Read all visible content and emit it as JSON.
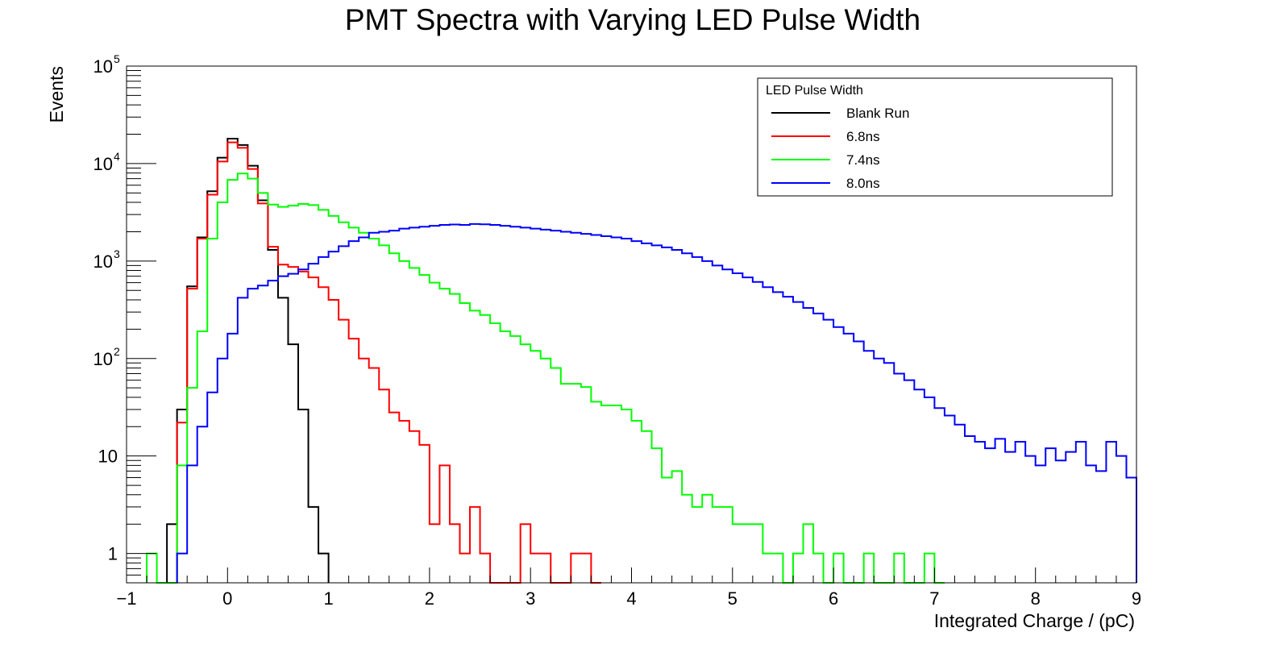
{
  "chart_data": {
    "type": "line",
    "title": "PMT Spectra with Varying LED Pulse Width",
    "xlabel": "Integrated Charge / (pC)",
    "ylabel": "Events",
    "xlim": [
      -1,
      9
    ],
    "ylim": [
      0.5,
      100000
    ],
    "y_scale": "log",
    "bin_width": 0.1,
    "grid": false,
    "x_ticks": [
      "−1",
      "0",
      "1",
      "2",
      "3",
      "4",
      "5",
      "6",
      "7",
      "8",
      "9"
    ],
    "y_ticks": [
      {
        "base": "10",
        "exp": "5"
      },
      {
        "base": "10",
        "exp": "4"
      },
      {
        "base": "10",
        "exp": "3"
      },
      {
        "base": "10",
        "exp": "2"
      },
      {
        "base": "10",
        "exp": ""
      },
      {
        "base": "1",
        "exp": ""
      }
    ],
    "legend": {
      "title": "LED Pulse Width",
      "position": "top-right",
      "entries": [
        "Blank Run",
        "6.8ns",
        "7.4ns",
        "8.0ns"
      ]
    },
    "series": [
      {
        "name": "Blank Run",
        "color": "#000000",
        "bins": [
          [
            -0.6,
            2
          ],
          [
            -0.5,
            30
          ],
          [
            -0.4,
            550
          ],
          [
            -0.3,
            1750
          ],
          [
            -0.2,
            5200
          ],
          [
            -0.1,
            11500
          ],
          [
            0.0,
            18000
          ],
          [
            0.1,
            15500
          ],
          [
            0.2,
            9500
          ],
          [
            0.3,
            4200
          ],
          [
            0.4,
            1300
          ],
          [
            0.5,
            420
          ],
          [
            0.6,
            140
          ],
          [
            0.7,
            30
          ],
          [
            0.8,
            3
          ],
          [
            0.9,
            1
          ]
        ]
      },
      {
        "name": "6.8ns",
        "color": "#ff0000",
        "bins": [
          [
            -0.5,
            22
          ],
          [
            -0.4,
            520
          ],
          [
            -0.3,
            1700
          ],
          [
            -0.2,
            4800
          ],
          [
            -0.1,
            10500
          ],
          [
            0.0,
            16500
          ],
          [
            0.1,
            14500
          ],
          [
            0.2,
            8800
          ],
          [
            0.3,
            3900
          ],
          [
            0.4,
            1400
          ],
          [
            0.5,
            920
          ],
          [
            0.6,
            870
          ],
          [
            0.7,
            780
          ],
          [
            0.8,
            680
          ],
          [
            0.9,
            540
          ],
          [
            1.0,
            400
          ],
          [
            1.1,
            250
          ],
          [
            1.2,
            160
          ],
          [
            1.3,
            100
          ],
          [
            1.4,
            80
          ],
          [
            1.5,
            48
          ],
          [
            1.6,
            28
          ],
          [
            1.7,
            23
          ],
          [
            1.8,
            18
          ],
          [
            1.9,
            13
          ],
          [
            2.0,
            2
          ],
          [
            2.1,
            8
          ],
          [
            2.2,
            2
          ],
          [
            2.3,
            1
          ],
          [
            2.4,
            3
          ],
          [
            2.5,
            1
          ],
          [
            2.6,
            0
          ],
          [
            2.7,
            0
          ],
          [
            2.8,
            0
          ],
          [
            2.9,
            2
          ],
          [
            3.0,
            1
          ],
          [
            3.1,
            1
          ],
          [
            3.2,
            0
          ],
          [
            3.3,
            0
          ],
          [
            3.4,
            1
          ],
          [
            3.5,
            1
          ],
          [
            3.6,
            0
          ]
        ]
      },
      {
        "name": "7.4ns",
        "color": "#00ff00",
        "bins": [
          [
            -0.8,
            1
          ],
          [
            -0.7,
            0
          ],
          [
            -0.6,
            0
          ],
          [
            -0.5,
            8
          ],
          [
            -0.4,
            50
          ],
          [
            -0.3,
            190
          ],
          [
            -0.2,
            1700
          ],
          [
            -0.1,
            4000
          ],
          [
            0.0,
            6800
          ],
          [
            0.1,
            7900
          ],
          [
            0.2,
            7000
          ],
          [
            0.3,
            5000
          ],
          [
            0.4,
            3800
          ],
          [
            0.5,
            3600
          ],
          [
            0.6,
            3700
          ],
          [
            0.7,
            3850
          ],
          [
            0.8,
            3750
          ],
          [
            0.9,
            3350
          ],
          [
            1.0,
            2900
          ],
          [
            1.1,
            2500
          ],
          [
            1.2,
            2200
          ],
          [
            1.3,
            1950
          ],
          [
            1.4,
            1700
          ],
          [
            1.5,
            1450
          ],
          [
            1.6,
            1200
          ],
          [
            1.7,
            1000
          ],
          [
            1.8,
            850
          ],
          [
            1.9,
            720
          ],
          [
            2.0,
            600
          ],
          [
            2.1,
            520
          ],
          [
            2.2,
            460
          ],
          [
            2.3,
            370
          ],
          [
            2.4,
            310
          ],
          [
            2.5,
            280
          ],
          [
            2.6,
            230
          ],
          [
            2.7,
            190
          ],
          [
            2.8,
            170
          ],
          [
            2.9,
            140
          ],
          [
            3.0,
            120
          ],
          [
            3.1,
            100
          ],
          [
            3.2,
            80
          ],
          [
            3.3,
            55
          ],
          [
            3.4,
            55
          ],
          [
            3.5,
            51
          ],
          [
            3.6,
            36
          ],
          [
            3.7,
            33
          ],
          [
            3.8,
            33
          ],
          [
            3.9,
            30
          ],
          [
            4.0,
            23
          ],
          [
            4.1,
            18
          ],
          [
            4.2,
            12
          ],
          [
            4.3,
            6
          ],
          [
            4.4,
            7
          ],
          [
            4.5,
            4
          ],
          [
            4.6,
            3
          ],
          [
            4.7,
            4
          ],
          [
            4.8,
            3
          ],
          [
            4.9,
            3
          ],
          [
            5.0,
            2
          ],
          [
            5.1,
            2
          ],
          [
            5.2,
            2
          ],
          [
            5.3,
            1
          ],
          [
            5.4,
            1
          ],
          [
            5.5,
            0
          ],
          [
            5.6,
            1
          ],
          [
            5.7,
            2
          ],
          [
            5.8,
            1
          ],
          [
            5.9,
            0
          ],
          [
            6.0,
            1
          ],
          [
            6.1,
            0
          ],
          [
            6.2,
            0
          ],
          [
            6.3,
            1
          ],
          [
            6.4,
            0
          ],
          [
            6.5,
            0
          ],
          [
            6.6,
            1
          ],
          [
            6.7,
            0
          ],
          [
            6.8,
            0
          ],
          [
            6.9,
            1
          ],
          [
            7.0,
            0
          ]
        ]
      },
      {
        "name": "8.0ns",
        "color": "#0000ff",
        "bins": [
          [
            -0.5,
            1
          ],
          [
            -0.4,
            8
          ],
          [
            -0.3,
            20
          ],
          [
            -0.2,
            45
          ],
          [
            -0.1,
            100
          ],
          [
            0.0,
            180
          ],
          [
            0.1,
            420
          ],
          [
            0.2,
            520
          ],
          [
            0.3,
            560
          ],
          [
            0.4,
            630
          ],
          [
            0.5,
            700
          ],
          [
            0.6,
            740
          ],
          [
            0.7,
            820
          ],
          [
            0.8,
            940
          ],
          [
            0.9,
            1100
          ],
          [
            1.0,
            1250
          ],
          [
            1.1,
            1420
          ],
          [
            1.2,
            1600
          ],
          [
            1.3,
            1750
          ],
          [
            1.4,
            1950
          ],
          [
            1.5,
            2000
          ],
          [
            1.6,
            2050
          ],
          [
            1.7,
            2150
          ],
          [
            1.8,
            2200
          ],
          [
            1.9,
            2250
          ],
          [
            2.0,
            2300
          ],
          [
            2.1,
            2350
          ],
          [
            2.2,
            2370
          ],
          [
            2.3,
            2350
          ],
          [
            2.4,
            2400
          ],
          [
            2.5,
            2380
          ],
          [
            2.6,
            2350
          ],
          [
            2.7,
            2300
          ],
          [
            2.8,
            2250
          ],
          [
            2.9,
            2200
          ],
          [
            3.0,
            2150
          ],
          [
            3.1,
            2100
          ],
          [
            3.2,
            2050
          ],
          [
            3.3,
            2000
          ],
          [
            3.4,
            1950
          ],
          [
            3.5,
            1900
          ],
          [
            3.6,
            1850
          ],
          [
            3.7,
            1800
          ],
          [
            3.8,
            1750
          ],
          [
            3.9,
            1700
          ],
          [
            4.0,
            1600
          ],
          [
            4.1,
            1520
          ],
          [
            4.2,
            1450
          ],
          [
            4.3,
            1380
          ],
          [
            4.4,
            1300
          ],
          [
            4.5,
            1200
          ],
          [
            4.6,
            1100
          ],
          [
            4.7,
            1000
          ],
          [
            4.8,
            900
          ],
          [
            4.9,
            820
          ],
          [
            5.0,
            750
          ],
          [
            5.1,
            680
          ],
          [
            5.2,
            610
          ],
          [
            5.3,
            540
          ],
          [
            5.4,
            480
          ],
          [
            5.5,
            430
          ],
          [
            5.6,
            380
          ],
          [
            5.7,
            330
          ],
          [
            5.8,
            290
          ],
          [
            5.9,
            250
          ],
          [
            6.0,
            210
          ],
          [
            6.1,
            180
          ],
          [
            6.2,
            150
          ],
          [
            6.3,
            120
          ],
          [
            6.4,
            100
          ],
          [
            6.5,
            90
          ],
          [
            6.6,
            70
          ],
          [
            6.7,
            60
          ],
          [
            6.8,
            48
          ],
          [
            6.9,
            40
          ],
          [
            7.0,
            31
          ],
          [
            7.1,
            26
          ],
          [
            7.2,
            21
          ],
          [
            7.3,
            16
          ],
          [
            7.4,
            14
          ],
          [
            7.5,
            12
          ],
          [
            7.6,
            15
          ],
          [
            7.7,
            11
          ],
          [
            7.8,
            14
          ],
          [
            7.9,
            10
          ],
          [
            8.0,
            8
          ],
          [
            8.1,
            12
          ],
          [
            8.2,
            9
          ],
          [
            8.3,
            11
          ],
          [
            8.4,
            14
          ],
          [
            8.5,
            8
          ],
          [
            8.6,
            7
          ],
          [
            8.7,
            14
          ],
          [
            8.8,
            10
          ],
          [
            8.9,
            6
          ]
        ]
      }
    ]
  }
}
